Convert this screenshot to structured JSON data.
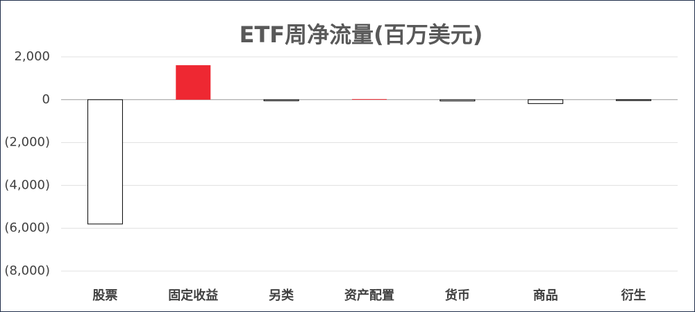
{
  "chart_data": {
    "type": "bar",
    "title": "ETF周净流量(百万美元)",
    "categories": [
      "股票",
      "固定收益",
      "另类",
      "资产配置",
      "货币",
      "商品",
      "衍生"
    ],
    "values": [
      -5800,
      1610,
      -50,
      30,
      -60,
      -180,
      -40
    ],
    "positive_color": "#ee2832",
    "negative_color": "#ffffff",
    "negative_tick_color": "#e00000",
    "ylim": [
      -8000,
      2000
    ],
    "yticks": [
      {
        "value": -8000,
        "label": "(8,000)"
      },
      {
        "value": -6000,
        "label": "(6,000)"
      },
      {
        "value": -4000,
        "label": "(4,000)"
      },
      {
        "value": -2000,
        "label": "(2,000)"
      },
      0,
      {
        "value": 2000,
        "label": "2,000"
      }
    ],
    "grid": true
  }
}
